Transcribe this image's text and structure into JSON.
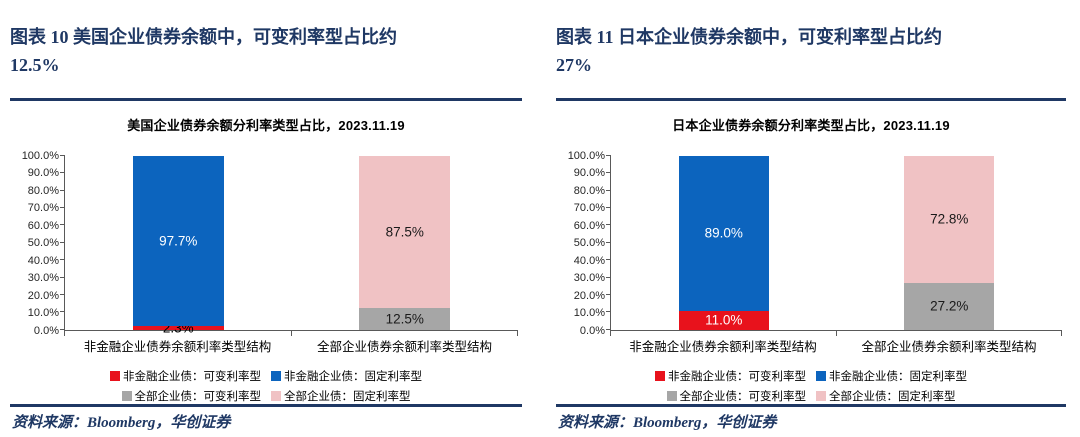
{
  "figures": [
    {
      "caption_line1": "图表 10  美国企业债券余额中，可变利率型占比约",
      "caption_line2": "12.5%",
      "source": "资料来源：Bloomberg，华创证券"
    },
    {
      "caption_line1": "图表 11  日本企业债券余额中，可变利率型占比约",
      "caption_line2": "27%",
      "source": "资料来源：Bloomberg，华创证券"
    }
  ],
  "chart_data": [
    {
      "type": "bar",
      "stacked": true,
      "title": "美国企业债券余额分利率类型占比，2023.11.19",
      "ylim": [
        0,
        100
      ],
      "ytick_step": 10,
      "grid": false,
      "legend_position": "bottom",
      "yticks": [
        "100.0%",
        "90.0%",
        "80.0%",
        "70.0%",
        "60.0%",
        "50.0%",
        "40.0%",
        "30.0%",
        "20.0%",
        "10.0%",
        "0.0%"
      ],
      "categories": [
        "非金融企业债券余额利率类型结构",
        "全部企业债券余额利率类型结构"
      ],
      "bars": [
        {
          "segments": [
            {
              "name": "非金融企业债：可变利率型",
              "value": 2.3,
              "label": "2.3%",
              "color": "#E8121C",
              "label_color": "#000000"
            },
            {
              "name": "非金融企业债：固定利率型",
              "value": 97.7,
              "label": "97.7%",
              "color": "#0C64BE",
              "label_color": "#FFFFFF"
            }
          ]
        },
        {
          "segments": [
            {
              "name": "全部企业债：可变利率型",
              "value": 12.5,
              "label": "12.5%",
              "color": "#A6A6A6",
              "label_color": "#1A1A1A"
            },
            {
              "name": "全部企业债：固定利率型",
              "value": 87.5,
              "label": "87.5%",
              "color": "#F0C2C4",
              "label_color": "#1A1A1A"
            }
          ]
        }
      ],
      "legend": [
        [
          {
            "label": "非金融企业债：可变利率型",
            "color": "#E8121C"
          },
          {
            "label": "非金融企业债：固定利率型",
            "color": "#0C64BE"
          }
        ],
        [
          {
            "label": "全部企业债：可变利率型",
            "color": "#A6A6A6"
          },
          {
            "label": "全部企业债：固定利率型",
            "color": "#F0C2C4"
          }
        ]
      ]
    },
    {
      "type": "bar",
      "stacked": true,
      "title": "日本企业债券余额分利率类型占比，2023.11.19",
      "ylim": [
        0,
        100
      ],
      "ytick_step": 10,
      "grid": false,
      "legend_position": "bottom",
      "yticks": [
        "100.0%",
        "90.0%",
        "80.0%",
        "70.0%",
        "60.0%",
        "50.0%",
        "40.0%",
        "30.0%",
        "20.0%",
        "10.0%",
        "0.0%"
      ],
      "categories": [
        "非金融企业债券余额利率类型结构",
        "全部企业债券余额利率类型结构"
      ],
      "bars": [
        {
          "segments": [
            {
              "name": "非金融企业债：可变利率型",
              "value": 11.0,
              "label": "11.0%",
              "color": "#E8121C",
              "label_color": "#FFFFFF"
            },
            {
              "name": "非金融企业债：固定利率型",
              "value": 89.0,
              "label": "89.0%",
              "color": "#0C64BE",
              "label_color": "#FFFFFF"
            }
          ]
        },
        {
          "segments": [
            {
              "name": "全部企业债：可变利率型",
              "value": 27.2,
              "label": "27.2%",
              "color": "#A6A6A6",
              "label_color": "#1A1A1A"
            },
            {
              "name": "全部企业债：固定利率型",
              "value": 72.8,
              "label": "72.8%",
              "color": "#F0C2C4",
              "label_color": "#1A1A1A"
            }
          ]
        }
      ],
      "legend": [
        [
          {
            "label": "非金融企业债：可变利率型",
            "color": "#E8121C"
          },
          {
            "label": "非金融企业债：固定利率型",
            "color": "#0C64BE"
          }
        ],
        [
          {
            "label": "全部企业债：可变利率型",
            "color": "#A6A6A6"
          },
          {
            "label": "全部企业债：固定利率型",
            "color": "#F0C2C4"
          }
        ]
      ]
    }
  ]
}
